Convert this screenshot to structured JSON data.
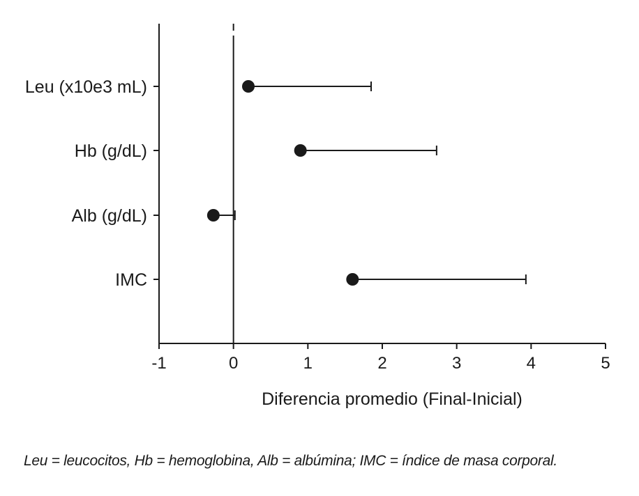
{
  "chart_data": {
    "type": "forest",
    "categories": [
      "Leu (x10e3 mL)",
      "Hb (g/dL)",
      "Alb (g/dL)",
      "IMC"
    ],
    "points": [
      {
        "label": "Leu (x10e3 mL)",
        "value": 0.2,
        "upper": 1.85
      },
      {
        "label": "Hb (g/dL)",
        "value": 0.9,
        "upper": 2.73
      },
      {
        "label": "Alb (g/dL)",
        "value": -0.27,
        "upper": 0.02
      },
      {
        "label": "IMC",
        "value": 1.6,
        "upper": 3.93
      }
    ],
    "xlim": [
      -1,
      5
    ],
    "xticks": [
      -1,
      0,
      1,
      2,
      3,
      4,
      5
    ],
    "xlabel": "Diferencia promedio (Final-Inicial)",
    "reference_line": 0,
    "grid": false,
    "legend": "none"
  },
  "caption": "Leu = leucocitos, Hb = hemoglobina, Alb = albúmina; IMC = índice de masa corporal."
}
